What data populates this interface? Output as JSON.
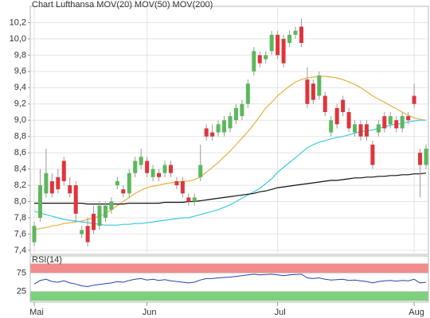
{
  "chart_data": [
    {
      "type": "candlestick",
      "title": "Chart Lufthansa",
      "title_color": "#e8a040",
      "categories": [
        "Mai",
        null,
        null,
        null,
        null,
        null,
        null,
        null,
        null,
        null,
        null,
        null,
        null,
        null,
        null,
        null,
        null,
        null,
        null,
        "Jun",
        null,
        null,
        null,
        null,
        null,
        null,
        null,
        null,
        null,
        null,
        null,
        null,
        null,
        null,
        null,
        null,
        null,
        null,
        null,
        null,
        null,
        "Jul",
        null,
        null,
        null,
        null,
        null,
        null,
        null,
        null,
        null,
        null,
        null,
        null,
        null,
        null,
        null,
        null,
        null,
        null,
        null,
        null,
        null,
        null,
        "Aug",
        null,
        null
      ],
      "open": [
        7.5,
        7.8,
        8.1,
        8.25,
        8.3,
        8.5,
        8.2,
        8.2,
        7.6,
        7.7,
        7.85,
        7.7,
        7.8,
        7.9,
        8.2,
        8.15,
        8.1,
        8.35,
        8.45,
        8.5,
        8.3,
        8.35,
        8.35,
        8.45,
        8.25,
        8.25,
        8.05,
        8.0,
        8.3,
        8.9,
        8.85,
        8.85,
        8.85,
        8.9,
        9.0,
        9.05,
        9.2,
        9.6,
        9.8,
        9.75,
        9.85,
        10.05,
        10.0,
        9.95,
        10.05,
        10.15,
        9.5,
        9.45,
        9.3,
        9.3,
        8.85,
        9.15,
        9.25,
        9.1,
        8.85,
        8.95,
        8.95,
        8.7,
        8.85,
        9.05,
        8.95,
        9.0,
        8.9,
        9.05,
        9.3,
        8.6,
        8.45
      ],
      "high": [
        7.75,
        8.4,
        8.65,
        8.35,
        8.4,
        8.55,
        8.3,
        8.25,
        7.7,
        7.8,
        7.95,
        8.0,
        8.0,
        8.05,
        8.3,
        8.2,
        8.4,
        8.55,
        8.65,
        8.55,
        8.45,
        8.4,
        8.5,
        8.5,
        8.3,
        8.3,
        8.1,
        8.1,
        8.7,
        8.95,
        8.95,
        9.0,
        9.05,
        9.1,
        9.2,
        9.25,
        9.5,
        9.9,
        9.85,
        9.85,
        10.1,
        10.1,
        10.05,
        10.1,
        10.15,
        10.25,
        9.65,
        9.5,
        9.6,
        9.35,
        9.05,
        9.2,
        9.3,
        9.15,
        9.0,
        9.0,
        9.0,
        8.75,
        9.0,
        9.1,
        9.1,
        9.05,
        9.1,
        9.1,
        9.45,
        8.65,
        8.7
      ],
      "low": [
        7.45,
        7.75,
        8.05,
        8.05,
        8.1,
        8.2,
        8.05,
        7.75,
        7.55,
        7.45,
        7.6,
        7.65,
        7.75,
        7.85,
        8.15,
        8.05,
        8.05,
        8.3,
        8.4,
        8.3,
        8.25,
        8.25,
        8.3,
        8.3,
        8.15,
        8.05,
        7.95,
        7.95,
        8.25,
        8.75,
        8.75,
        8.8,
        8.8,
        8.85,
        8.95,
        9.0,
        9.15,
        9.55,
        9.65,
        9.7,
        9.8,
        9.75,
        9.65,
        9.9,
        10.0,
        9.9,
        9.15,
        9.2,
        9.25,
        9.05,
        8.8,
        8.9,
        9.05,
        8.85,
        8.8,
        8.75,
        8.75,
        8.4,
        8.8,
        8.85,
        8.9,
        8.85,
        8.85,
        8.95,
        9.15,
        8.05,
        8.4
      ],
      "close": [
        7.7,
        8.2,
        8.35,
        8.1,
        8.15,
        8.25,
        8.1,
        7.85,
        7.65,
        7.5,
        7.65,
        7.95,
        7.95,
        8.0,
        8.25,
        8.1,
        8.35,
        8.5,
        8.55,
        8.35,
        8.4,
        8.3,
        8.45,
        8.35,
        8.2,
        8.1,
        8.0,
        8.05,
        8.45,
        8.8,
        8.8,
        8.95,
        9.0,
        9.05,
        9.15,
        9.2,
        9.45,
        9.85,
        9.7,
        9.8,
        10.05,
        9.8,
        9.7,
        10.05,
        10.1,
        9.95,
        9.2,
        9.25,
        9.55,
        9.1,
        9.0,
        8.95,
        9.1,
        8.9,
        8.95,
        8.8,
        8.8,
        8.45,
        8.95,
        8.9,
        9.05,
        8.9,
        9.05,
        9.0,
        9.2,
        8.45,
        8.65
      ],
      "up_color": "#5cb85c",
      "down_color": "#e0343c",
      "wick_color": "#999999",
      "series": [
        {
          "name": "MOV(20)",
          "color": "#e8b040",
          "values": [
            7.65,
            7.67,
            7.68,
            7.7,
            7.71,
            7.73,
            7.74,
            7.75,
            7.76,
            7.78,
            7.8,
            7.82,
            7.85,
            7.9,
            7.95,
            8.0,
            8.05,
            8.1,
            8.14,
            8.17,
            8.19,
            8.2,
            8.22,
            8.23,
            8.24,
            8.25,
            8.25,
            8.27,
            8.3,
            8.36,
            8.42,
            8.48,
            8.55,
            8.62,
            8.7,
            8.78,
            8.86,
            8.95,
            9.05,
            9.15,
            9.22,
            9.3,
            9.36,
            9.42,
            9.47,
            9.5,
            9.52,
            9.53,
            9.54,
            9.54,
            9.53,
            9.52,
            9.5,
            9.47,
            9.44,
            9.4,
            9.35,
            9.3,
            9.26,
            9.22,
            9.18,
            9.14,
            9.1,
            9.06,
            9.03,
            9.01,
            9.0
          ]
        },
        {
          "name": "MOV(50)",
          "color": "#40c8e0",
          "values": [
            7.88,
            7.86,
            7.84,
            7.82,
            7.8,
            7.78,
            7.77,
            7.76,
            7.75,
            7.74,
            7.73,
            7.72,
            7.71,
            7.71,
            7.71,
            7.72,
            7.72,
            7.73,
            7.73,
            7.74,
            7.75,
            7.76,
            7.77,
            7.78,
            7.79,
            7.8,
            7.8,
            7.82,
            7.84,
            7.86,
            7.88,
            7.9,
            7.93,
            7.96,
            8.0,
            8.04,
            8.08,
            8.12,
            8.16,
            8.22,
            8.28,
            8.36,
            8.42,
            8.48,
            8.54,
            8.6,
            8.66,
            8.7,
            8.73,
            8.75,
            8.77,
            8.79,
            8.8,
            8.82,
            8.84,
            8.86,
            8.87,
            8.88,
            8.9,
            8.92,
            8.94,
            8.95,
            8.96,
            8.98,
            8.99,
            9.0,
            9.0
          ]
        },
        {
          "name": "MOV(200)",
          "color": "#111111",
          "values": [
            7.98,
            7.98,
            7.98,
            7.98,
            7.98,
            7.98,
            7.98,
            7.98,
            7.98,
            7.97,
            7.97,
            7.97,
            7.97,
            7.97,
            7.97,
            7.97,
            7.98,
            7.98,
            7.98,
            7.98,
            7.98,
            7.98,
            7.99,
            7.99,
            7.99,
            7.99,
            8.0,
            8.0,
            8.01,
            8.02,
            8.03,
            8.04,
            8.05,
            8.06,
            8.07,
            8.08,
            8.09,
            8.1,
            8.12,
            8.13,
            8.15,
            8.17,
            8.18,
            8.19,
            8.2,
            8.21,
            8.22,
            8.23,
            8.24,
            8.25,
            8.26,
            8.26,
            8.27,
            8.28,
            8.29,
            8.29,
            8.3,
            8.3,
            8.31,
            8.31,
            8.32,
            8.32,
            8.33,
            8.33,
            8.34,
            8.34,
            8.35
          ]
        }
      ],
      "ylim": [
        7.35,
        10.4
      ],
      "yticks": [
        {
          "value": 7.4,
          "label": "7,4"
        },
        {
          "value": 7.6,
          "label": "7,6"
        },
        {
          "value": 7.8,
          "label": "7,8"
        },
        {
          "value": 8.0,
          "label": "8,0"
        },
        {
          "value": 8.2,
          "label": "8,2"
        },
        {
          "value": 8.4,
          "label": "8,4"
        },
        {
          "value": 8.6,
          "label": "8,6"
        },
        {
          "value": 8.8,
          "label": "8,8"
        },
        {
          "value": 9.0,
          "label": "9,0"
        },
        {
          "value": 9.2,
          "label": "9,2"
        },
        {
          "value": 9.4,
          "label": "9,4"
        },
        {
          "value": 9.6,
          "label": "9,6"
        },
        {
          "value": 9.8,
          "label": "9,8"
        },
        {
          "value": 10.0,
          "label": "10,0"
        },
        {
          "value": 10.2,
          "label": "10,2"
        }
      ],
      "grid": true
    },
    {
      "type": "line",
      "title": "RSI(14)",
      "color": "#2a3fb0",
      "values": [
        45,
        55,
        58,
        52,
        50,
        54,
        48,
        45,
        40,
        38,
        42,
        44,
        46,
        48,
        52,
        50,
        55,
        58,
        60,
        56,
        58,
        55,
        57,
        54,
        52,
        50,
        48,
        50,
        56,
        60,
        60,
        62,
        63,
        64,
        66,
        68,
        70,
        72,
        70,
        71,
        72,
        70,
        68,
        70,
        71,
        72,
        62,
        60,
        62,
        58,
        56,
        57,
        58,
        55,
        56,
        54,
        52,
        48,
        52,
        54,
        55,
        53,
        55,
        54,
        58,
        48,
        50
      ],
      "ylim": [
        0,
        100
      ],
      "yticks": [
        25,
        75
      ],
      "zones": [
        {
          "from": 75,
          "to": 100,
          "color": "#f08c8c"
        },
        {
          "from": 0,
          "to": 25,
          "color": "#7ed07e"
        }
      ],
      "grid": true
    }
  ]
}
